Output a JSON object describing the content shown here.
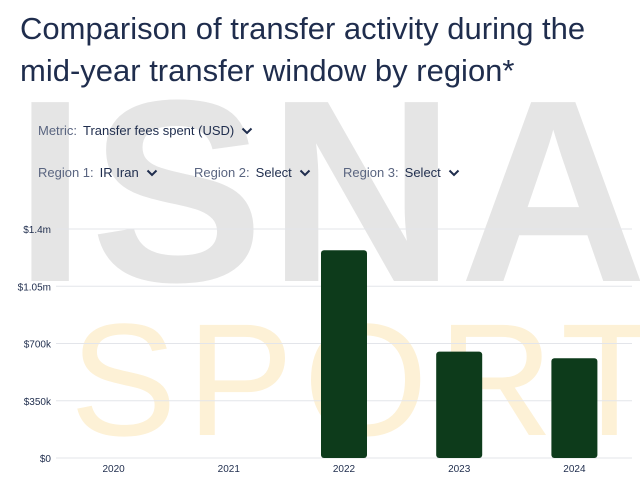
{
  "watermark": {
    "line1": "ISNA",
    "line2": "SPORT"
  },
  "title": "Comparison of transfer activity during the mid-year transfer window by region*",
  "filters": {
    "metric": {
      "label": "Metric:",
      "value": "Transfer fees spent (USD)"
    },
    "region1": {
      "label": "Region 1:",
      "value": "IR Iran"
    },
    "region2": {
      "label": "Region 2:",
      "value": "Select"
    },
    "region3": {
      "label": "Region 3:",
      "value": "Select"
    }
  },
  "chart_data": {
    "type": "bar",
    "categories": [
      "2020",
      "2021",
      "2022",
      "2023",
      "2024"
    ],
    "series": [
      {
        "values": [
          0,
          0,
          1270000,
          650000,
          610000
        ]
      }
    ],
    "y_ticks": [
      "$0",
      "$350k",
      "$700k",
      "$1.05m",
      "$1.4m"
    ],
    "ylim": [
      0,
      1400000
    ],
    "grid": true,
    "bar_color": "#0d3b1b",
    "xlabel": "",
    "ylabel": ""
  }
}
